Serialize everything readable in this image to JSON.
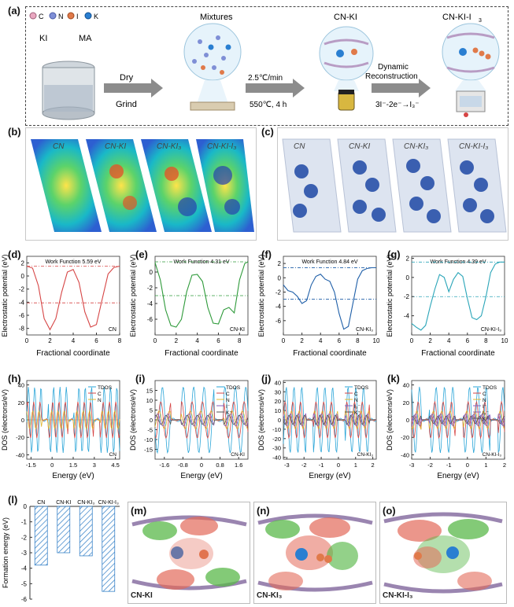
{
  "panel_labels": {
    "a": "(a)",
    "b": "(b)",
    "c": "(c)",
    "d": "(d)",
    "e": "(e)",
    "f": "(f)",
    "g": "(g)",
    "h": "(h)",
    "i": "(i)",
    "j": "(j)",
    "k": "(k)",
    "l": "(l)",
    "m": "(m)",
    "n": "(n)",
    "o": "(o)"
  },
  "legend_a": {
    "c": "C",
    "n": "N",
    "i": "I",
    "k": "K"
  },
  "colors": {
    "C": "#e8a7c0",
    "N": "#7f8fd6",
    "I": "#e07a4a",
    "K": "#2a7fd1",
    "red": "#d64545",
    "green": "#2e9a3a",
    "blue": "#1f5fa8",
    "teal": "#2aa5b8"
  },
  "panel_a": {
    "ki": "KI",
    "ma": "MA",
    "mixtures": "Mixtures",
    "dry": "Dry",
    "grind": "Grind",
    "rate": "2.5℃/min",
    "temp": "550℃, 4 h",
    "cnki": "CN-KI",
    "cnkii3": "CN-KI-I",
    "dynamic": "Dynamic",
    "reconstruction": "Reconstruction",
    "reaction": "3I⁻-2e⁻→I₃⁻"
  },
  "panel_b_labels": [
    "CN",
    "CN-KI",
    "CN-KI₃",
    "CN-KI-I₃"
  ],
  "panel_c_labels": [
    "CN",
    "CN-KI",
    "CN-KI₃",
    "CN-KI-I₃"
  ],
  "chart_data": [
    {
      "id": "d",
      "type": "line",
      "title": "Work Function 5.59 eV",
      "xlabel": "Fractional coordinate",
      "ylabel": "Electrostatic potential (eV)",
      "xlim": [
        0,
        8
      ],
      "ylim": [
        -9,
        3
      ],
      "xticks": [
        0,
        2,
        4,
        6,
        8
      ],
      "yticks": [
        -8,
        -6,
        -4,
        -2,
        0,
        2
      ],
      "color": "#d64545",
      "ref_lines": [
        1.5,
        -4.1
      ],
      "tag": "CN",
      "x": [
        0,
        0.5,
        1,
        1.5,
        2,
        2.5,
        3,
        3.5,
        4,
        4.5,
        5,
        5.5,
        6,
        6.5,
        7,
        7.5,
        8
      ],
      "y": [
        1.5,
        1.2,
        -1.5,
        -6.5,
        -8.2,
        -6.5,
        -2.5,
        0.6,
        1.0,
        -1.0,
        -5.5,
        -7.8,
        -7.4,
        -3.5,
        0.3,
        1.3,
        1.5
      ]
    },
    {
      "id": "e",
      "type": "line",
      "title": "Work Function 4.31 eV",
      "xlabel": "Fractional coordinate",
      "ylabel": "Electrostatic potential (eV)",
      "xlim": [
        0,
        8.8
      ],
      "ylim": [
        -8,
        2
      ],
      "xticks": [
        0,
        2,
        4,
        6,
        8
      ],
      "yticks": [
        -6,
        -4,
        -2,
        0
      ],
      "color": "#2e9a3a",
      "ref_lines": [
        1.3,
        -3.0
      ],
      "tag": "CN-KI",
      "x": [
        0,
        0.5,
        1,
        1.5,
        2,
        2.5,
        3,
        3.5,
        4,
        4.5,
        5,
        5.5,
        6,
        6.5,
        7,
        7.5,
        8,
        8.5,
        8.8
      ],
      "y": [
        1.2,
        -1.0,
        -4.8,
        -6.8,
        -7.0,
        -6.0,
        -2.5,
        -0.4,
        -0.3,
        -1.2,
        -4.5,
        -6.5,
        -6.6,
        -4.8,
        -4.5,
        -5.2,
        -1.0,
        1.1,
        1.3
      ]
    },
    {
      "id": "f",
      "type": "line",
      "title": "Work Function 4.84 eV",
      "xlabel": "Fractional coordinate",
      "ylabel": "Electrostatic potential (eV)",
      "xlim": [
        0,
        10
      ],
      "ylim": [
        -8,
        3
      ],
      "xticks": [
        0,
        2,
        4,
        6,
        8,
        10
      ],
      "yticks": [
        -6,
        -4,
        -2,
        0,
        2
      ],
      "color": "#1f5fa8",
      "ref_lines": [
        1.4,
        -3.0
      ],
      "tag": "CN-KI₃",
      "x": [
        0,
        0.5,
        1,
        1.5,
        2,
        2.5,
        3,
        3.5,
        4,
        4.5,
        5,
        5.5,
        6,
        6.5,
        7,
        7.5,
        8,
        8.5,
        9,
        9.5,
        10
      ],
      "y": [
        -1.0,
        -1.8,
        -2.0,
        -2.6,
        -3.6,
        -3.2,
        -1.0,
        0.2,
        0.5,
        -0.2,
        -0.5,
        -2.0,
        -5.0,
        -7.2,
        -6.8,
        -3.5,
        -0.2,
        1.0,
        1.3,
        1.4,
        1.4
      ]
    },
    {
      "id": "g",
      "type": "line",
      "title": "Work Function 4.39 eV",
      "xlabel": "Fractional coordinate",
      "ylabel": "Electrostatic potential (eV)",
      "xlim": [
        0,
        10
      ],
      "ylim": [
        -6,
        2.2
      ],
      "xticks": [
        0,
        2,
        4,
        6,
        8,
        10
      ],
      "yticks": [
        -4,
        -2,
        0,
        2
      ],
      "color": "#2aa5b8",
      "ref_lines": [
        1.6,
        -2.0
      ],
      "tag": "CN-KI-I₃",
      "x": [
        0,
        0.5,
        1,
        1.5,
        2,
        2.5,
        3,
        3.5,
        4,
        4.5,
        5,
        5.5,
        6,
        6.5,
        7,
        7.5,
        8,
        8.5,
        9,
        9.5,
        10
      ],
      "y": [
        -4.8,
        -5.2,
        -5.5,
        -5.0,
        -3.0,
        -1.2,
        0.3,
        0.0,
        -1.5,
        -0.2,
        0.5,
        0.1,
        -2.2,
        -4.2,
        -4.4,
        -4.0,
        -2.0,
        0.5,
        1.4,
        1.6,
        1.6
      ]
    },
    {
      "id": "h",
      "type": "line",
      "title": "",
      "xlabel": "Energy (eV)",
      "ylabel": "DOS (electrons/eV)",
      "xlim": [
        -1.8,
        4.8
      ],
      "ylim": [
        -45,
        45
      ],
      "xticks": [
        -1.5,
        0.0,
        1.5,
        3.0,
        4.5
      ],
      "yticks": [
        -40,
        -20,
        0,
        20,
        40
      ],
      "legend": [
        "TDOS",
        "C",
        "N"
      ],
      "tag": "CN"
    },
    {
      "id": "i",
      "type": "line",
      "title": "",
      "xlabel": "Energy (eV)",
      "ylabel": "DOS (electrons/eV)",
      "xlim": [
        -2.0,
        2.0
      ],
      "ylim": [
        -20,
        20
      ],
      "xticks": [
        -1.6,
        -0.8,
        0.0,
        0.8,
        1.6
      ],
      "yticks": [
        -15,
        -10,
        -5,
        0,
        5,
        10,
        15
      ],
      "legend": [
        "TDOS",
        "C",
        "N",
        "I⁻",
        "K⁺"
      ],
      "tag": "CN-KI"
    },
    {
      "id": "j",
      "type": "line",
      "title": "",
      "xlabel": "Energy (eV)",
      "ylabel": "DOS (electrons/eV)",
      "xlim": [
        -3.2,
        2.2
      ],
      "ylim": [
        -42,
        42
      ],
      "xticks": [
        -3,
        -2,
        -1,
        0,
        1,
        2
      ],
      "yticks": [
        -40,
        -30,
        -20,
        -10,
        0,
        10,
        20,
        30,
        40
      ],
      "legend": [
        "TDOS",
        "C",
        "N",
        "I₃⁻",
        "K⁺"
      ],
      "tag": "CN-KI₃"
    },
    {
      "id": "k",
      "type": "line",
      "title": "",
      "xlabel": "Energy (eV)",
      "ylabel": "DOS (electrons/eV)",
      "xlim": [
        -3.0,
        2.0
      ],
      "ylim": [
        -45,
        45
      ],
      "xticks": [
        -3,
        -2,
        -1,
        0,
        1,
        2
      ],
      "yticks": [
        -40,
        -20,
        0,
        20,
        40
      ],
      "legend": [
        "TDOS",
        "C",
        "N",
        "I⁻",
        "I₃⁻",
        "K⁺"
      ],
      "tag": "CN-KI-I₃"
    },
    {
      "id": "l",
      "type": "bar",
      "title": "",
      "xlabel": "",
      "ylabel": "Formation energy (eV)",
      "ylim": [
        -6,
        0
      ],
      "yticks": [
        0,
        -1,
        -2,
        -3,
        -4,
        -5,
        -6
      ],
      "categories": [
        "CN",
        "CN-KI",
        "CN-KI₃",
        "CN-KI-I₃"
      ],
      "values": [
        -3.8,
        -3.0,
        -3.2,
        -5.5
      ]
    }
  ],
  "panel_m": "CN-KI",
  "panel_n": "CN-KI₃",
  "panel_o": "CN-KI-I₃"
}
